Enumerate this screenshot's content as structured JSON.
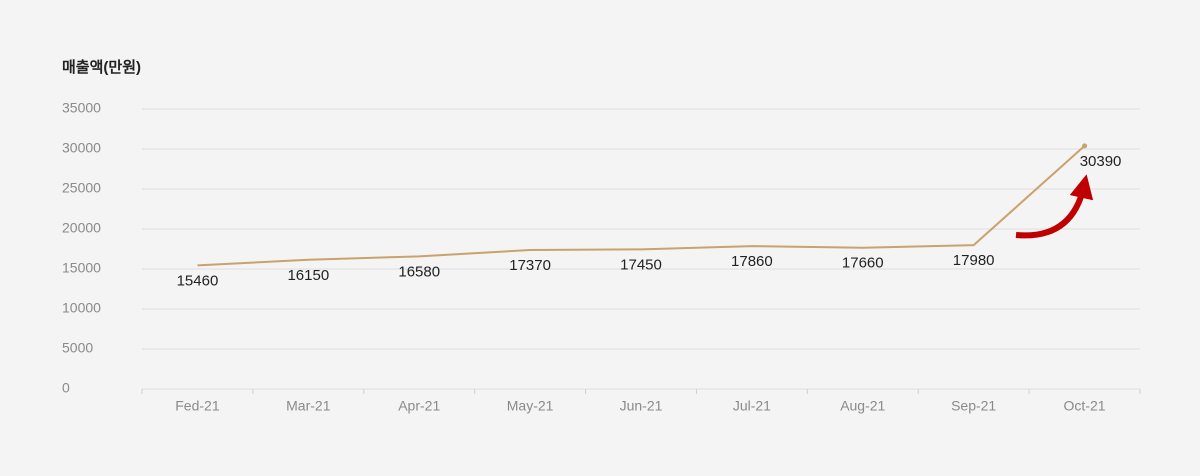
{
  "chart_data": {
    "type": "line",
    "y_axis_label": "매출액(만원)",
    "categories": [
      "Fed-21",
      "Mar-21",
      "Apr-21",
      "May-21",
      "Jun-21",
      "Jul-21",
      "Aug-21",
      "Sep-21",
      "Oct-21"
    ],
    "series": [
      {
        "name": "매출액",
        "color": "#c9a26d",
        "values": [
          15460,
          16150,
          16580,
          17370,
          17450,
          17860,
          17660,
          17980,
          30390
        ]
      }
    ],
    "ylim": [
      0,
      35000
    ],
    "yticks": [
      0,
      5000,
      10000,
      15000,
      20000,
      25000,
      30000,
      35000
    ],
    "grid": true
  }
}
